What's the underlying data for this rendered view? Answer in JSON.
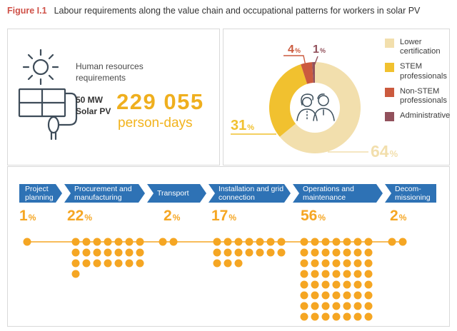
{
  "figure": {
    "tag": "Figure I.1",
    "title": "Labour requirements along the value chain and occupational patterns for workers in solar PV"
  },
  "summary": {
    "icon": "solar-pv-sun-plug-icon",
    "label": "Human resources requirements",
    "project": "50 MW Solar PV",
    "value": "229 055",
    "unit": "person-days"
  },
  "occupations": {
    "center_icon": "two-people-icon",
    "percent_suffix": "%",
    "slices": [
      {
        "label": "Lower certification",
        "percent": 64,
        "color": "#F2DFAD"
      },
      {
        "label": "STEM professionals",
        "percent": 31,
        "color": "#F1C12F"
      },
      {
        "label": "Non-STEM professionals",
        "percent": 4,
        "color": "#CB5A3E"
      },
      {
        "label": "Administrative",
        "percent": 1,
        "color": "#92515C"
      }
    ]
  },
  "value_chain": {
    "percent_suffix": "%",
    "stages": [
      {
        "label": "Project planning",
        "percent": 1
      },
      {
        "label": "Procurement and manufacturing",
        "percent": 22
      },
      {
        "label": "Transport",
        "percent": 2
      },
      {
        "label": "Installation and grid connection",
        "percent": 17
      },
      {
        "label": "Operations and maintenance",
        "percent": 56
      },
      {
        "label": "Decom- missioning",
        "percent": 2
      }
    ]
  },
  "colors": {
    "accent_red": "#CF5148",
    "chevron_blue": "#2E72B5",
    "dot_amber": "#F5A623",
    "value_amber": "#EFAF1E",
    "panel_border": "#D9D9D9",
    "icon_stroke": "#3E4C59"
  },
  "chart_data": [
    {
      "type": "pie",
      "subtype": "donut",
      "title": "Occupational pattern for workers in solar PV",
      "labels": [
        "Lower certification",
        "STEM professionals",
        "Non-STEM professionals",
        "Administrative"
      ],
      "values": [
        64,
        31,
        4,
        1
      ],
      "unit": "%",
      "colors": [
        "#F2DFAD",
        "#F1C12F",
        "#CB5A3E",
        "#92515C"
      ],
      "legend_position": "right",
      "start_angle_deg": 0,
      "direction": "clockwise"
    },
    {
      "type": "bar",
      "subtype": "dot-pictogram",
      "title": "Labour requirements along the value chain (50 MW solar PV, 229 055 person-days)",
      "categories": [
        "Project planning",
        "Procurement and manufacturing",
        "Transport",
        "Installation and grid connection",
        "Operations and maintenance",
        "Decommissioning"
      ],
      "values": [
        1,
        22,
        2,
        17,
        56,
        2
      ],
      "unit": "%",
      "dot_value_percent": 1,
      "dots_per_row": 7
    }
  ]
}
